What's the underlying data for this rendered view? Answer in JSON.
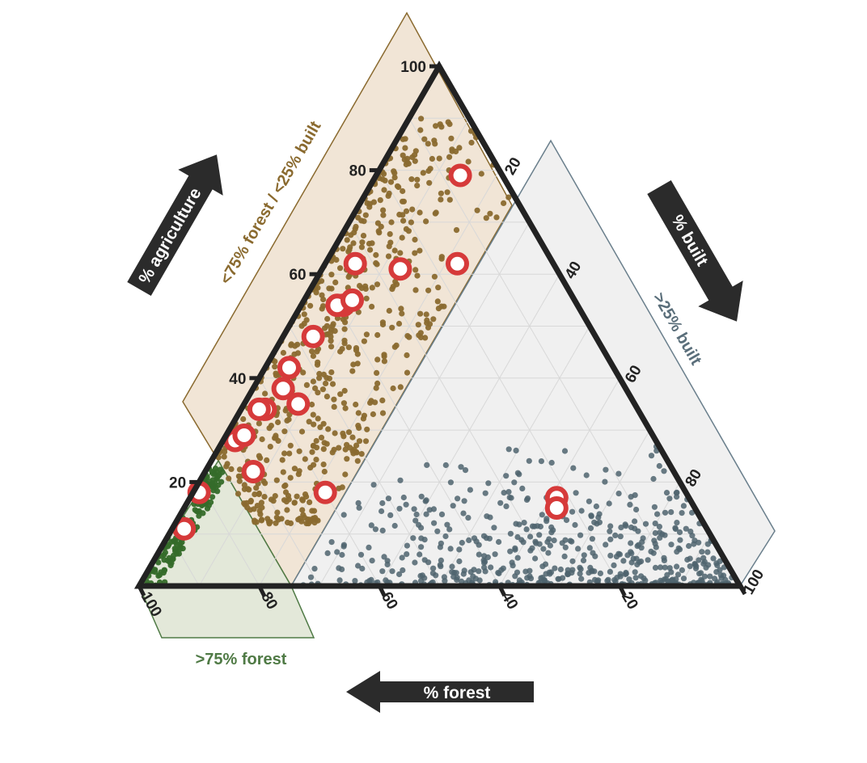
{
  "chart_data": {
    "type": "scatter",
    "subtype": "ternary",
    "axes": {
      "agriculture": {
        "label": "% agriculture",
        "ticks": [
          "20",
          "40",
          "60",
          "80",
          "100"
        ]
      },
      "built": {
        "label": "% built",
        "ticks": [
          "20",
          "40",
          "60",
          "80",
          "100"
        ]
      },
      "forest": {
        "label": "% forest",
        "ticks": [
          "100",
          "80",
          "60",
          "40",
          "20"
        ]
      }
    },
    "grid": true,
    "regions": [
      {
        "name": "forest",
        "label": ">75% forest",
        "color": "#3e6b35"
      },
      {
        "name": "agriculture",
        "label": "<75% forest / <25% built",
        "color": "#8a6a2f"
      },
      {
        "name": "built",
        "label": ">25% built",
        "color": "#5a6e7a"
      }
    ],
    "colors": {
      "forest_points": "#356b2a",
      "agriculture_points": "#8a6a2f",
      "built_points": "#4f646e",
      "highlight": "#d63a3a",
      "frame": "#222222"
    },
    "series": [
      {
        "group": "forest",
        "count": 160,
        "approx_range": {
          "forest": [
            75,
            100
          ],
          "built": [
            0,
            25
          ]
        }
      },
      {
        "group": "agriculture",
        "count": 620,
        "approx_range": {
          "agriculture": [
            10,
            95
          ],
          "built": [
            0,
            25
          ]
        }
      },
      {
        "group": "built",
        "count": 560,
        "approx_range": {
          "built": [
            25,
            100
          ],
          "agriculture": [
            0,
            45
          ]
        }
      }
    ],
    "highlighted_points": [
      {
        "agriculture": 79,
        "built": 14,
        "forest": 7
      },
      {
        "agriculture": 62,
        "built": 5,
        "forest": 33
      },
      {
        "agriculture": 61,
        "built": 13,
        "forest": 26
      },
      {
        "agriculture": 62,
        "built": 22,
        "forest": 16
      },
      {
        "agriculture": 54,
        "built": 7,
        "forest": 39
      },
      {
        "agriculture": 54,
        "built": 6,
        "forest": 40
      },
      {
        "agriculture": 55,
        "built": 8,
        "forest": 37
      },
      {
        "agriculture": 48,
        "built": 5,
        "forest": 47
      },
      {
        "agriculture": 42,
        "built": 4,
        "forest": 54
      },
      {
        "agriculture": 38,
        "built": 5,
        "forest": 57
      },
      {
        "agriculture": 35,
        "built": 9,
        "forest": 56
      },
      {
        "agriculture": 34,
        "built": 4,
        "forest": 62
      },
      {
        "agriculture": 34,
        "built": 3,
        "forest": 63
      },
      {
        "agriculture": 28,
        "built": 2,
        "forest": 70
      },
      {
        "agriculture": 29,
        "built": 3,
        "forest": 68
      },
      {
        "agriculture": 22,
        "built": 8,
        "forest": 70
      },
      {
        "agriculture": 18,
        "built": 1,
        "forest": 81
      },
      {
        "agriculture": 11,
        "built": 2,
        "forest": 87
      },
      {
        "agriculture": 18,
        "built": 22,
        "forest": 60
      },
      {
        "agriculture": 17,
        "built": 61,
        "forest": 22
      },
      {
        "agriculture": 15,
        "built": 62,
        "forest": 23
      }
    ]
  }
}
